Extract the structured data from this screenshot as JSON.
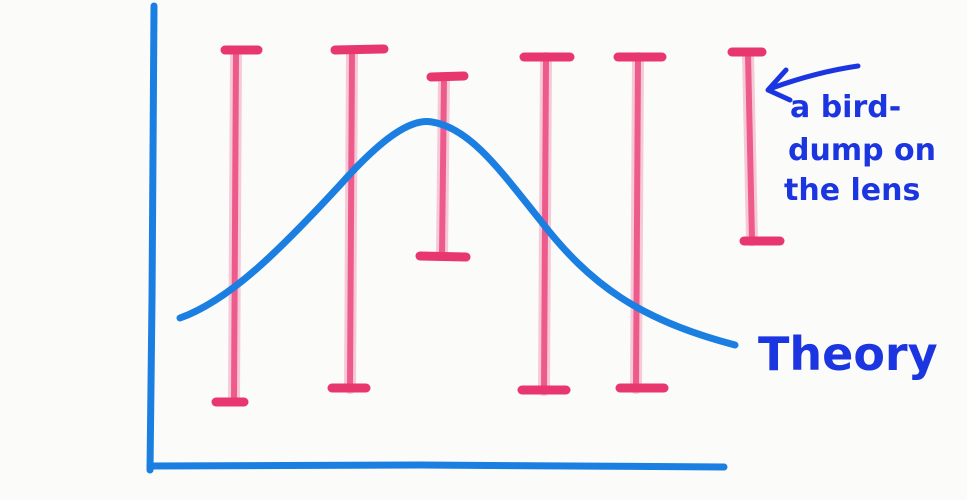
{
  "annotation": {
    "lines": [
      "a bird-",
      "dump on",
      "the lens"
    ]
  },
  "curve_label": "Theory"
}
